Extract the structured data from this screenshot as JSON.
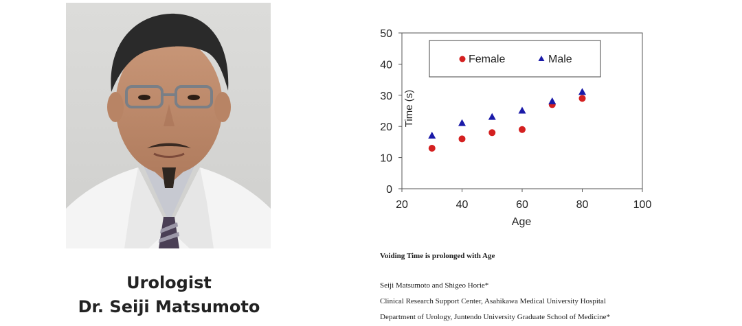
{
  "caption": {
    "role": "Urologist",
    "name": "Dr. Seiji Matsumoto"
  },
  "paper": {
    "title": "Voiding Time is prolonged with Age",
    "authors": "Seiji Matsumoto and Shigeo Horie*",
    "affiliation_1": "Clinical Research Support Center, Asahikawa Medical University Hospital",
    "affiliation_2": "Department of Urology, Juntendo University Graduate School of Medicine*"
  },
  "colors": {
    "female": "#d42020",
    "male": "#1a1aa8",
    "axis": "#555555",
    "photo_bg": "#d9d9d7"
  },
  "chart_data": {
    "type": "scatter",
    "title": "",
    "xlabel": "Age",
    "ylabel": "Time (s)",
    "xlim": [
      20,
      100
    ],
    "ylim": [
      0,
      50
    ],
    "xticks": [
      20,
      40,
      60,
      80,
      100
    ],
    "yticks": [
      0,
      10,
      20,
      30,
      40,
      50
    ],
    "grid": false,
    "legend": "top-center inside box",
    "series": [
      {
        "name": "Female",
        "marker": "circle",
        "x": [
          30,
          40,
          50,
          60,
          70,
          80
        ],
        "y": [
          13,
          16,
          18,
          19,
          27,
          29
        ]
      },
      {
        "name": "Male",
        "marker": "triangle",
        "x": [
          30,
          40,
          50,
          60,
          70,
          80
        ],
        "y": [
          17,
          21,
          23,
          25,
          28,
          31
        ]
      }
    ]
  }
}
